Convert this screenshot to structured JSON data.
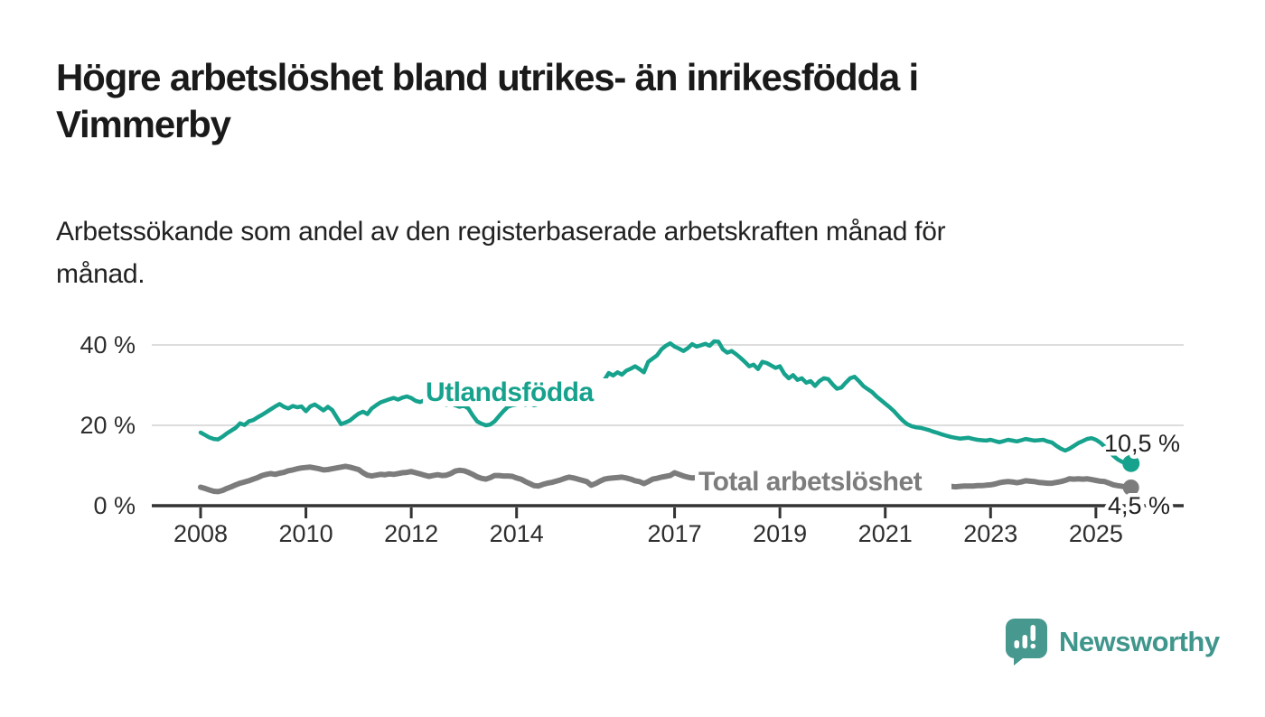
{
  "header": {
    "title_line1": "Högre arbetslöshet bland utrikes- än inrikesfödda i",
    "title_line2": "Vimmerby",
    "subtitle_line1": "Arbetssökande som andel av den registerbaserade arbetskraften månad för",
    "subtitle_line2": "månad."
  },
  "footer": {
    "brand": "Newsworthy",
    "logo_icon": "newsworthy-speech-bubble-bar-chart-icon"
  },
  "colors": {
    "accent_teal": "#16a28d",
    "series_gray": "#7c7c7c",
    "logo_teal": "#3f968c",
    "axis": "#333333",
    "grid": "#dddddd",
    "text": "#1a1a1a"
  },
  "chart_data": {
    "type": "line",
    "title": "Högre arbetslöshet bland utrikes- än inrikesfödda i Vimmerby",
    "subtitle": "Arbetssökande som andel av den registerbaserade arbetskraften månad för månad.",
    "unit": "%",
    "frequency": "monthly",
    "x_start": "2008-01",
    "x_end": "2025-09",
    "x_tick_years": [
      2008,
      2010,
      2012,
      2014,
      2017,
      2019,
      2021,
      2023,
      2025
    ],
    "y_ticks": [
      {
        "value": 0,
        "label": "0 %"
      },
      {
        "value": 20,
        "label": "20 %"
      },
      {
        "value": 40,
        "label": "40 %"
      }
    ],
    "ylim": [
      0,
      44
    ],
    "grid": "horizontal-only",
    "legend_position": "inline-on-lines",
    "series": [
      {
        "name": "Utlandsfödda",
        "color": "#16a28d",
        "end_label": "10,5 %",
        "end_value": 10.5,
        "values": [
          18.2,
          17.6,
          17.0,
          16.6,
          16.5,
          17.2,
          18.0,
          18.7,
          19.4,
          20.5,
          20.1,
          21.0,
          21.3,
          22.0,
          22.6,
          23.3,
          24.0,
          24.7,
          25.3,
          24.6,
          24.2,
          24.8,
          24.5,
          24.7,
          23.5,
          24.7,
          25.2,
          24.5,
          23.7,
          24.6,
          23.8,
          22.0,
          20.3,
          20.7,
          21.2,
          22.1,
          22.9,
          23.4,
          22.8,
          24.2,
          25.0,
          25.7,
          26.1,
          26.5,
          26.8,
          26.4,
          26.9,
          27.2,
          26.8,
          26.1,
          25.8,
          26.2,
          25.6,
          25.9,
          25.3,
          25.7,
          25.1,
          25.5,
          25.0,
          24.6,
          24.9,
          24.2,
          22.5,
          21.0,
          20.4,
          20.0,
          20.2,
          21.0,
          22.3,
          23.5,
          24.6,
          25.0,
          25.2,
          25.5,
          25.1,
          25.4,
          25.0,
          25.3,
          25.6,
          25.2,
          25.7,
          26.0,
          25.6,
          26.1,
          26.4,
          26.0,
          26.5,
          27.0,
          27.6,
          28.2,
          28.8,
          30.0,
          31.3,
          33.0,
          32.4,
          33.2,
          32.6,
          33.6,
          34.1,
          34.7,
          34.0,
          33.2,
          35.8,
          36.6,
          37.4,
          38.9,
          39.8,
          40.4,
          39.6,
          39.1,
          38.5,
          39.2,
          40.2,
          39.6,
          39.9,
          40.3,
          39.8,
          40.9,
          40.8,
          38.9,
          38.1,
          38.5,
          37.7,
          36.8,
          35.8,
          34.7,
          35.1,
          34.0,
          35.8,
          35.5,
          34.9,
          34.3,
          34.7,
          32.8,
          31.7,
          32.5,
          31.3,
          31.7,
          30.6,
          31.0,
          29.8,
          31.0,
          31.7,
          31.5,
          30.2,
          29.1,
          29.4,
          30.6,
          31.7,
          32.1,
          31.0,
          29.8,
          29.0,
          28.3,
          27.2,
          26.3,
          25.4,
          24.5,
          23.5,
          22.3,
          21.2,
          20.3,
          19.8,
          19.5,
          19.4,
          19.1,
          18.8,
          18.4,
          18.1,
          17.7,
          17.4,
          17.1,
          16.9,
          16.7,
          16.8,
          16.9,
          16.6,
          16.4,
          16.3,
          16.2,
          16.4,
          16.1,
          15.8,
          16.1,
          16.4,
          16.2,
          16.0,
          16.3,
          16.6,
          16.4,
          16.2,
          16.3,
          16.4,
          16.0,
          15.7,
          14.9,
          14.2,
          13.7,
          14.2,
          14.9,
          15.6,
          16.1,
          16.6,
          16.8,
          16.4,
          15.7,
          14.7,
          13.5,
          12.4,
          11.5,
          10.9,
          10.6,
          10.5
        ]
      },
      {
        "name": "Total arbetslöshet",
        "color": "#7c7c7c",
        "end_label": "4,5 %",
        "end_value": 4.5,
        "values": [
          4.6,
          4.3,
          3.9,
          3.6,
          3.5,
          3.8,
          4.3,
          4.7,
          5.2,
          5.6,
          5.9,
          6.2,
          6.6,
          7.0,
          7.5,
          7.8,
          8.0,
          7.8,
          8.1,
          8.3,
          8.7,
          8.9,
          9.2,
          9.4,
          9.5,
          9.6,
          9.4,
          9.2,
          8.9,
          9.0,
          9.2,
          9.4,
          9.6,
          9.8,
          9.6,
          9.3,
          9.0,
          8.2,
          7.6,
          7.4,
          7.6,
          7.8,
          7.7,
          7.9,
          7.8,
          8.0,
          8.2,
          8.3,
          8.5,
          8.2,
          7.9,
          7.6,
          7.3,
          7.5,
          7.7,
          7.5,
          7.6,
          8.0,
          8.6,
          8.8,
          8.7,
          8.3,
          7.8,
          7.2,
          6.8,
          6.6,
          7.0,
          7.5,
          7.5,
          7.4,
          7.4,
          7.3,
          6.9,
          6.6,
          6.0,
          5.5,
          5.0,
          4.9,
          5.3,
          5.6,
          5.8,
          6.1,
          6.4,
          6.8,
          7.1,
          6.9,
          6.6,
          6.3,
          6.0,
          5.1,
          5.5,
          6.1,
          6.6,
          6.8,
          6.9,
          7.0,
          7.1,
          6.9,
          6.6,
          6.2,
          6.0,
          5.5,
          6.0,
          6.6,
          6.8,
          7.1,
          7.3,
          7.5,
          8.2,
          7.8,
          7.4,
          7.1,
          6.9,
          7.0,
          7.2,
          7.1,
          6.9,
          6.7,
          6.6,
          6.6,
          6.5,
          6.4,
          6.2,
          6.0,
          5.8,
          5.9,
          6.1,
          6.0,
          5.8,
          5.6,
          5.5,
          5.6,
          5.7,
          5.6,
          5.4,
          5.3,
          5.2,
          5.3,
          5.5,
          5.6,
          5.4,
          5.3,
          5.2,
          5.3,
          5.5,
          5.8,
          6.3,
          6.9,
          7.1,
          7.0,
          6.8,
          6.5,
          6.2,
          5.9,
          5.7,
          5.5,
          5.4,
          5.3,
          5.2,
          5.1,
          5.0,
          4.9,
          4.9,
          4.8,
          4.8,
          4.8,
          4.8,
          4.9,
          4.9,
          4.9,
          4.9,
          4.8,
          4.7,
          4.8,
          4.9,
          4.9,
          4.9,
          5.0,
          5.0,
          5.1,
          5.2,
          5.4,
          5.7,
          5.9,
          6.0,
          5.9,
          5.7,
          5.9,
          6.2,
          6.1,
          6.0,
          5.8,
          5.7,
          5.6,
          5.6,
          5.8,
          6.0,
          6.3,
          6.7,
          6.6,
          6.7,
          6.6,
          6.7,
          6.5,
          6.3,
          6.1,
          6.0,
          5.6,
          5.2,
          5.0,
          4.8,
          4.6,
          4.5
        ]
      }
    ]
  }
}
